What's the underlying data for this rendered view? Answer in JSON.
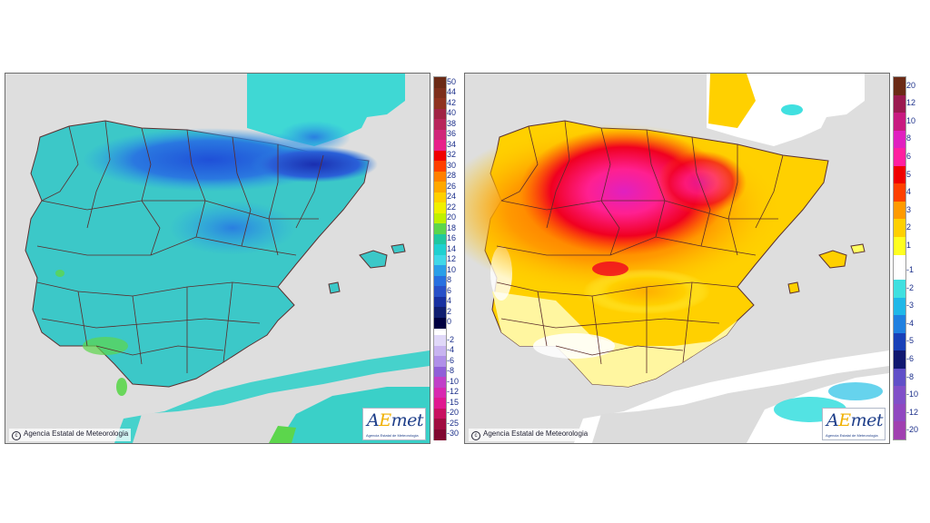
{
  "left_map": {
    "credit": "Agencia Estatal de Meteorologia",
    "logo_text": "AEmet",
    "logo_subtext": "Agencia Estatal de Meteorologia",
    "legend": {
      "labels": [
        "50",
        "44",
        "42",
        "40",
        "38",
        "36",
        "34",
        "32",
        "30",
        "28",
        "26",
        "24",
        "22",
        "20",
        "18",
        "16",
        "14",
        "12",
        "10",
        "8",
        "6",
        "4",
        "2",
        "0",
        "-2",
        "-4",
        "-6",
        "-8",
        "-10",
        "-12",
        "-15",
        "-20",
        "-25",
        "-30"
      ],
      "colors": [
        "#6b2a16",
        "#7d2f1c",
        "#8f3320",
        "#a02545",
        "#b8275c",
        "#d0277a",
        "#e81f8a",
        "#f00000",
        "#ff4000",
        "#ff8000",
        "#ffa800",
        "#ffd000",
        "#f0f000",
        "#c0f000",
        "#5cd64c",
        "#20c8a0",
        "#20d0d0",
        "#40d8e8",
        "#2a9fe8",
        "#2870e0",
        "#2850c8",
        "#1830a0",
        "#101e70",
        "#000040",
        "#e0d8f8",
        "#c8b4f0",
        "#b090e8",
        "#9060d8",
        "#c040c8",
        "#d828b0",
        "#e01890",
        "#c81060",
        "#a00c40",
        "#800830"
      ]
    },
    "sea_color": "#3fd8d4",
    "land_color": "#3cc8c8"
  },
  "right_map": {
    "credit": "Agencia Estatal de Meteorologia",
    "logo_text": "AEmet",
    "logo_subtext": "Agencia Estatal de Meteorologia",
    "legend": {
      "labels": [
        "20",
        "12",
        "10",
        "8",
        "6",
        "5",
        "4",
        "3",
        "2",
        "1",
        "-1",
        "-2",
        "-3",
        "-4",
        "-5",
        "-6",
        "-8",
        "-10",
        "-12",
        "-20"
      ],
      "colors": [
        "#6b2a16",
        "#9a1a50",
        "#c81a80",
        "#e020c0",
        "#ff20a0",
        "#f00000",
        "#ff4000",
        "#ff9a00",
        "#ffd000",
        "#ffff20",
        "#ffffff",
        "#40e0e0",
        "#20b8e8",
        "#2080e0",
        "#1840b8",
        "#101870",
        "#6050c8",
        "#8050c8",
        "#9048c0",
        "#a040b0"
      ]
    },
    "neutral_color": "#ffffff"
  }
}
